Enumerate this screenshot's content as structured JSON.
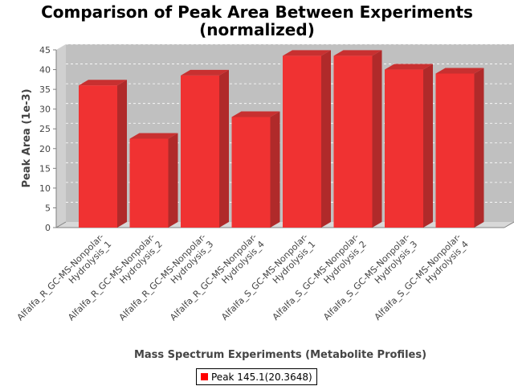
{
  "chart_data": {
    "type": "bar",
    "title_lines": [
      "Comparison of Peak Area Between Experiments",
      "(normalized)"
    ],
    "xlabel": "Mass Spectrum Experiments (Metabolite Profiles)",
    "ylabel": "Peak Area (1e-3)",
    "ylim": [
      0,
      45
    ],
    "yticks": [
      0,
      5,
      10,
      15,
      20,
      25,
      30,
      35,
      40,
      45
    ],
    "categories": [
      [
        "Alfalfa_R_GC-MS-Nonpolar-",
        "Hydrolysis_1"
      ],
      [
        "Alfalfa_R_GC-MS-Nonpolar-",
        "Hydrolysis_2"
      ],
      [
        "Alfalfa_R_GC-MS-Nonpolar-",
        "Hydrolysis_3"
      ],
      [
        "Alfalfa_R_GC-MS-Nonpolar-",
        "Hydrolysis_4"
      ],
      [
        "Alfalfa_S_GC-MS-Nonpolar-",
        "Hydrolysis_1"
      ],
      [
        "Alfalfa_S_GC-MS-Nonpolar-",
        "Hydrolysis_2"
      ],
      [
        "Alfalfa_S_GC-MS-Nonpolar-",
        "Hydrolysis_3"
      ],
      [
        "Alfalfa_S_GC-MS-Nonpolar-",
        "Hydrolysis_4"
      ]
    ],
    "series": [
      {
        "name": "Peak 145.1(20.3648)",
        "values": [
          36.0,
          22.5,
          38.5,
          28.0,
          43.5,
          43.5,
          40.0,
          39.0
        ]
      }
    ],
    "grid": true,
    "legend": "bottom-center",
    "colors": {
      "bar_front": "#f03232",
      "bar_side": "#b02a2a",
      "bar_top": "#c83030",
      "plot_bg": "#c0c0c0",
      "legend_swatch": "#ff0000"
    }
  }
}
